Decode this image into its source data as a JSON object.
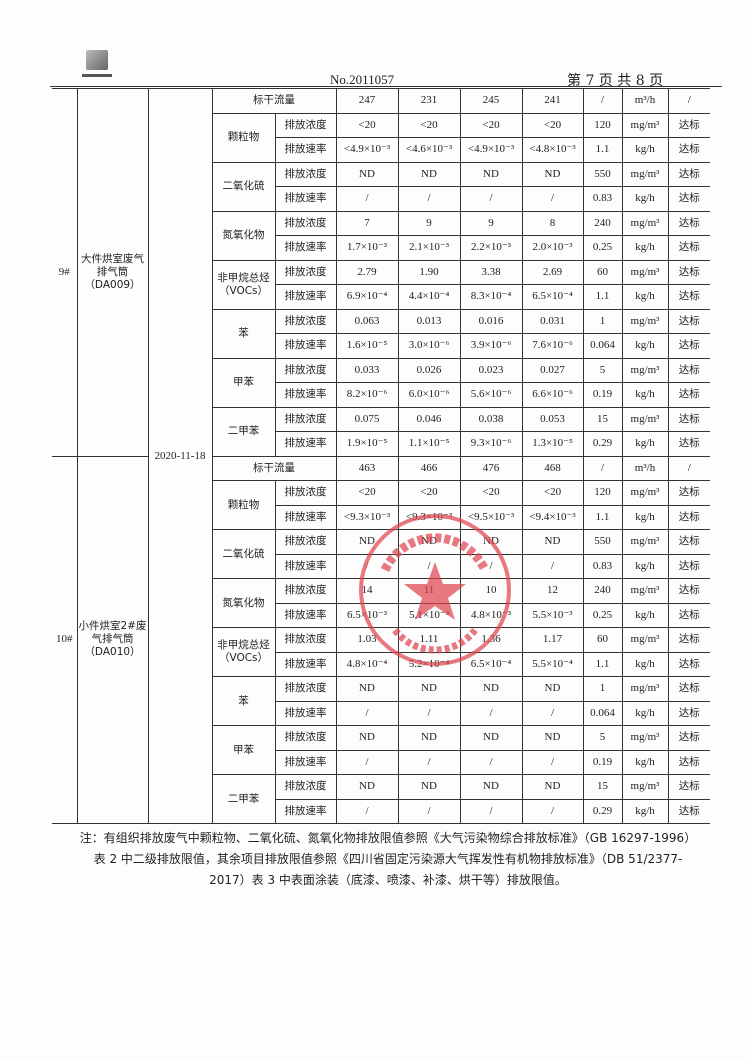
{
  "header": {
    "doc_no": "No.2011057",
    "page_info": "第 7 页 共 8 页"
  },
  "date": "2020-11-18",
  "groups": [
    {
      "no": "9#",
      "source": "大件烘室废气排气筒（DA009）",
      "flow": {
        "label": "标干流量",
        "values": [
          "247",
          "231",
          "245",
          "241"
        ],
        "limit": "/",
        "unit": "m³/h",
        "result": "/"
      },
      "pollutants": [
        {
          "name": "颗粒物",
          "rows": [
            {
              "param": "排放浓度",
              "values": [
                "<20",
                "<20",
                "<20",
                "<20"
              ],
              "limit": "120",
              "unit": "mg/m³",
              "result": "达标"
            },
            {
              "param": "排放速率",
              "values": [
                "<4.9×10⁻³",
                "<4.6×10⁻³",
                "<4.9×10⁻³",
                "<4.8×10⁻³"
              ],
              "limit": "1.1",
              "unit": "kg/h",
              "result": "达标"
            }
          ]
        },
        {
          "name": "二氧化硫",
          "rows": [
            {
              "param": "排放浓度",
              "values": [
                "ND",
                "ND",
                "ND",
                "ND"
              ],
              "limit": "550",
              "unit": "mg/m³",
              "result": "达标"
            },
            {
              "param": "排放速率",
              "values": [
                "/",
                "/",
                "/",
                "/"
              ],
              "limit": "0.83",
              "unit": "kg/h",
              "result": "达标"
            }
          ]
        },
        {
          "name": "氮氧化物",
          "rows": [
            {
              "param": "排放浓度",
              "values": [
                "7",
                "9",
                "9",
                "8"
              ],
              "limit": "240",
              "unit": "mg/m³",
              "result": "达标"
            },
            {
              "param": "排放速率",
              "values": [
                "1.7×10⁻³",
                "2.1×10⁻³",
                "2.2×10⁻³",
                "2.0×10⁻³"
              ],
              "limit": "0.25",
              "unit": "kg/h",
              "result": "达标"
            }
          ]
        },
        {
          "name": "非甲烷总烃（VOCs）",
          "rows": [
            {
              "param": "排放浓度",
              "values": [
                "2.79",
                "1.90",
                "3.38",
                "2.69"
              ],
              "limit": "60",
              "unit": "mg/m³",
              "result": "达标"
            },
            {
              "param": "排放速率",
              "values": [
                "6.9×10⁻⁴",
                "4.4×10⁻⁴",
                "8.3×10⁻⁴",
                "6.5×10⁻⁴"
              ],
              "limit": "1.1",
              "unit": "kg/h",
              "result": "达标"
            }
          ]
        },
        {
          "name": "苯",
          "rows": [
            {
              "param": "排放浓度",
              "values": [
                "0.063",
                "0.013",
                "0.016",
                "0.031"
              ],
              "limit": "1",
              "unit": "mg/m³",
              "result": "达标"
            },
            {
              "param": "排放速率",
              "values": [
                "1.6×10⁻⁵",
                "3.0×10⁻⁶",
                "3.9×10⁻⁶",
                "7.6×10⁻⁶"
              ],
              "limit": "0.064",
              "unit": "kg/h",
              "result": "达标"
            }
          ]
        },
        {
          "name": "甲苯",
          "rows": [
            {
              "param": "排放浓度",
              "values": [
                "0.033",
                "0.026",
                "0.023",
                "0.027"
              ],
              "limit": "5",
              "unit": "mg/m³",
              "result": "达标"
            },
            {
              "param": "排放速率",
              "values": [
                "8.2×10⁻⁶",
                "6.0×10⁻⁶",
                "5.6×10⁻⁶",
                "6.6×10⁻⁶"
              ],
              "limit": "0.19",
              "unit": "kg/h",
              "result": "达标"
            }
          ]
        },
        {
          "name": "二甲苯",
          "rows": [
            {
              "param": "排放浓度",
              "values": [
                "0.075",
                "0.046",
                "0.038",
                "0.053"
              ],
              "limit": "15",
              "unit": "mg/m³",
              "result": "达标"
            },
            {
              "param": "排放速率",
              "values": [
                "1.9×10⁻⁵",
                "1.1×10⁻⁵",
                "9.3×10⁻⁶",
                "1.3×10⁻⁵"
              ],
              "limit": "0.29",
              "unit": "kg/h",
              "result": "达标"
            }
          ]
        }
      ]
    },
    {
      "no": "10#",
      "source": "小件烘室2#废气排气筒（DA010）",
      "flow": {
        "label": "标干流量",
        "values": [
          "463",
          "466",
          "476",
          "468"
        ],
        "limit": "/",
        "unit": "m³/h",
        "result": "/"
      },
      "pollutants": [
        {
          "name": "颗粒物",
          "rows": [
            {
              "param": "排放浓度",
              "values": [
                "<20",
                "<20",
                "<20",
                "<20"
              ],
              "limit": "120",
              "unit": "mg/m³",
              "result": "达标"
            },
            {
              "param": "排放速率",
              "values": [
                "<9.3×10⁻³",
                "<9.3×10⁻³",
                "<9.5×10⁻³",
                "<9.4×10⁻³"
              ],
              "limit": "1.1",
              "unit": "kg/h",
              "result": "达标"
            }
          ]
        },
        {
          "name": "二氧化硫",
          "rows": [
            {
              "param": "排放浓度",
              "values": [
                "ND",
                "ND",
                "ND",
                "ND"
              ],
              "limit": "550",
              "unit": "mg/m³",
              "result": "达标"
            },
            {
              "param": "排放速率",
              "values": [
                "/",
                "/",
                "/",
                "/"
              ],
              "limit": "0.83",
              "unit": "kg/h",
              "result": "达标"
            }
          ]
        },
        {
          "name": "氮氧化物",
          "rows": [
            {
              "param": "排放浓度",
              "values": [
                "14",
                "11",
                "10",
                "12"
              ],
              "limit": "240",
              "unit": "mg/m³",
              "result": "达标"
            },
            {
              "param": "排放速率",
              "values": [
                "6.5×10⁻³",
                "5.1×10⁻³",
                "4.8×10⁻³",
                "5.5×10⁻³"
              ],
              "limit": "0.25",
              "unit": "kg/h",
              "result": "达标"
            }
          ]
        },
        {
          "name": "非甲烷总烃（VOCs）",
          "rows": [
            {
              "param": "排放浓度",
              "values": [
                "1.03",
                "1.11",
                "1.36",
                "1.17"
              ],
              "limit": "60",
              "unit": "mg/m³",
              "result": "达标"
            },
            {
              "param": "排放速率",
              "values": [
                "4.8×10⁻⁴",
                "5.2×10⁻⁴",
                "6.5×10⁻⁴",
                "5.5×10⁻⁴"
              ],
              "limit": "1.1",
              "unit": "kg/h",
              "result": "达标"
            }
          ]
        },
        {
          "name": "苯",
          "rows": [
            {
              "param": "排放浓度",
              "values": [
                "ND",
                "ND",
                "ND",
                "ND"
              ],
              "limit": "1",
              "unit": "mg/m³",
              "result": "达标"
            },
            {
              "param": "排放速率",
              "values": [
                "/",
                "/",
                "/",
                "/"
              ],
              "limit": "0.064",
              "unit": "kg/h",
              "result": "达标"
            }
          ]
        },
        {
          "name": "甲苯",
          "rows": [
            {
              "param": "排放浓度",
              "values": [
                "ND",
                "ND",
                "ND",
                "ND"
              ],
              "limit": "5",
              "unit": "mg/m³",
              "result": "达标"
            },
            {
              "param": "排放速率",
              "values": [
                "/",
                "/",
                "/",
                "/"
              ],
              "limit": "0.19",
              "unit": "kg/h",
              "result": "达标"
            }
          ]
        },
        {
          "name": "二甲苯",
          "rows": [
            {
              "param": "排放浓度",
              "values": [
                "ND",
                "ND",
                "ND",
                "ND"
              ],
              "limit": "15",
              "unit": "mg/m³",
              "result": "达标"
            },
            {
              "param": "排放速率",
              "values": [
                "/",
                "/",
                "/",
                "/"
              ],
              "limit": "0.29",
              "unit": "kg/h",
              "result": "达标"
            }
          ]
        }
      ]
    }
  ],
  "note": "注：有组织排放废气中颗粒物、二氧化硫、氮氧化物排放限值参照《大气污染物综合排放标准》（GB 16297-1996）表 2 中二级排放限值，其余项目排放限值参照《四川省固定污染源大气挥发性有机物排放标准》（DB 51/2377-2017）表 3 中表面涂装（底漆、喷漆、补漆、烘干等）排放限值。",
  "colors": {
    "stamp": "#e0404a",
    "ink": "#222222"
  }
}
